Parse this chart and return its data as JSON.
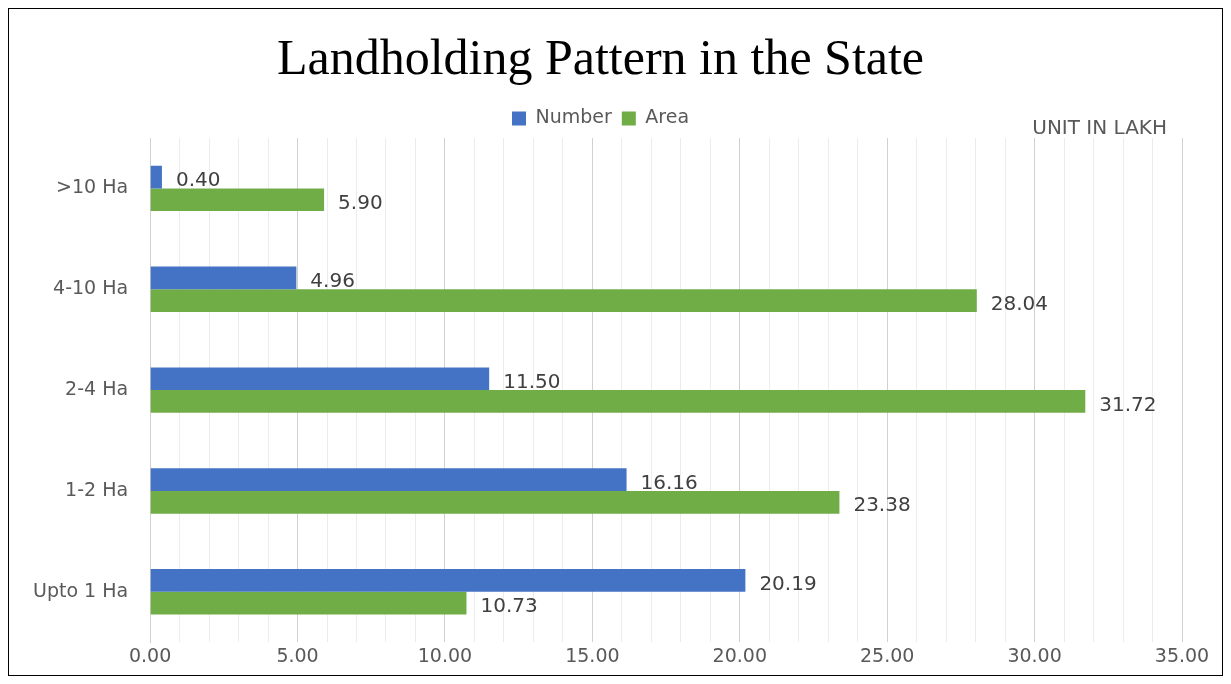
{
  "chart_data": {
    "type": "bar",
    "orientation": "horizontal",
    "title": "Landholding Pattern in the State",
    "annotations": [
      "UNIT IN LAKH"
    ],
    "categories": [
      ">10 Ha",
      "4-10 Ha",
      "2-4 Ha",
      "1-2 Ha",
      "Upto 1 Ha"
    ],
    "series": [
      {
        "name": "Number",
        "color": "#4472c4",
        "values": [
          0.4,
          4.96,
          11.5,
          16.16,
          20.19
        ],
        "value_labels": [
          "0.40",
          "4.96",
          "11.50",
          "16.16",
          "20.19"
        ]
      },
      {
        "name": "Area",
        "color": "#70ad47",
        "values": [
          5.9,
          28.04,
          31.72,
          23.38,
          10.73
        ],
        "value_labels": [
          "5.90",
          "28.04",
          "31.72",
          "23.38",
          "10.73"
        ]
      }
    ],
    "xlim": [
      0,
      35
    ],
    "xticks": [
      {
        "value": 0,
        "label": "0.00"
      },
      {
        "value": 1,
        "label": null
      },
      {
        "value": 2,
        "label": null
      },
      {
        "value": 3,
        "label": null
      },
      {
        "value": 4,
        "label": null
      },
      {
        "value": 5,
        "label": "5.00"
      },
      {
        "value": 6,
        "label": null
      },
      {
        "value": 7,
        "label": null
      },
      {
        "value": 8,
        "label": null
      },
      {
        "value": 9,
        "label": null
      },
      {
        "value": 10,
        "label": "10.00"
      },
      {
        "value": 11,
        "label": null
      },
      {
        "value": 12,
        "label": null
      },
      {
        "value": 13,
        "label": null
      },
      {
        "value": 14,
        "label": null
      },
      {
        "value": 15,
        "label": "15.00"
      },
      {
        "value": 16,
        "label": null
      },
      {
        "value": 17,
        "label": null
      },
      {
        "value": 18,
        "label": null
      },
      {
        "value": 19,
        "label": null
      },
      {
        "value": 20,
        "label": "20.00"
      },
      {
        "value": 21,
        "label": null
      },
      {
        "value": 22,
        "label": null
      },
      {
        "value": 23,
        "label": null
      },
      {
        "value": 24,
        "label": null
      },
      {
        "value": 25,
        "label": "25.00"
      },
      {
        "value": 26,
        "label": null
      },
      {
        "value": 27,
        "label": null
      },
      {
        "value": 28,
        "label": null
      },
      {
        "value": 29,
        "label": null
      },
      {
        "value": 30,
        "label": "30.00"
      },
      {
        "value": 31,
        "label": null
      },
      {
        "value": 32,
        "label": null
      },
      {
        "value": 33,
        "label": null
      },
      {
        "value": 34,
        "label": null
      },
      {
        "value": 35,
        "label": "35.00"
      }
    ],
    "grid": "x",
    "legend": "top"
  }
}
